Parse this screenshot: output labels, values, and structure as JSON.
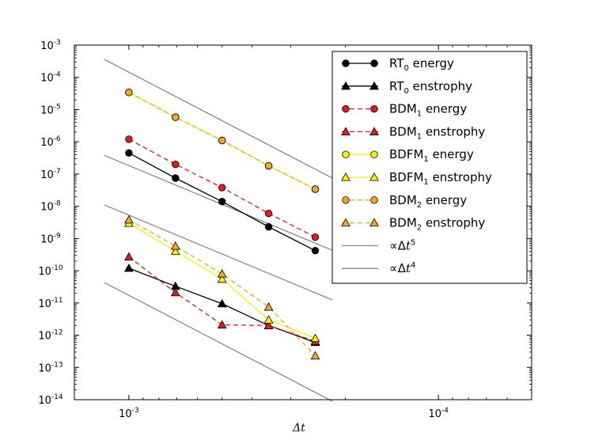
{
  "chart_data": {
    "type": "line",
    "title": "",
    "xlabel": "Δt",
    "ylabel": "",
    "x_scale": "log",
    "y_scale": "log",
    "x_reversed": true,
    "xlim": [
      0.0015,
      5e-05
    ],
    "ylim": [
      1e-14,
      0.001
    ],
    "x_ticks": [
      {
        "value": 0.001,
        "base": "10",
        "exp": "-3"
      },
      {
        "value": 0.0001,
        "base": "10",
        "exp": "-4"
      }
    ],
    "y_ticks": [
      {
        "value": 0.001,
        "base": "10",
        "exp": "-3"
      },
      {
        "value": 0.0001,
        "base": "10",
        "exp": "-4"
      },
      {
        "value": 1e-05,
        "base": "10",
        "exp": "-5"
      },
      {
        "value": 1e-06,
        "base": "10",
        "exp": "-6"
      },
      {
        "value": 1e-07,
        "base": "10",
        "exp": "-7"
      },
      {
        "value": 1e-08,
        "base": "10",
        "exp": "-8"
      },
      {
        "value": 1e-09,
        "base": "10",
        "exp": "-9"
      },
      {
        "value": 1e-10,
        "base": "10",
        "exp": "-10"
      },
      {
        "value": 1e-11,
        "base": "10",
        "exp": "-11"
      },
      {
        "value": 1e-12,
        "base": "10",
        "exp": "-12"
      },
      {
        "value": 1e-13,
        "base": "10",
        "exp": "-13"
      },
      {
        "value": 1e-14,
        "base": "10",
        "exp": "-14"
      }
    ],
    "x": [
      0.001,
      0.0007071,
      0.0005,
      0.0003536,
      0.00025
    ],
    "series": [
      {
        "name": "RT0 energy",
        "label_main": "RT",
        "label_sub": "0",
        "label_rest": " energy",
        "color": "#000000",
        "dash": "solid",
        "marker": "circle",
        "values": [
          4.5e-07,
          7.5e-08,
          1.4e-08,
          2.3e-09,
          4.2e-10
        ]
      },
      {
        "name": "RT0 enstrophy",
        "label_main": "RT",
        "label_sub": "0",
        "label_rest": " enstrophy",
        "color": "#000000",
        "dash": "solid",
        "marker": "triangle",
        "values": [
          1.2e-10,
          3.3e-11,
          9.5e-12,
          2e-12,
          6e-13
        ]
      },
      {
        "name": "BDM1 energy",
        "label_main": "BDM",
        "label_sub": "1",
        "label_rest": " energy",
        "color": "#e41a1c",
        "dash": "dashed",
        "marker": "circle",
        "values": [
          1.2e-06,
          2e-07,
          3.8e-08,
          6e-09,
          1.1e-09
        ]
      },
      {
        "name": "BDM1 enstrophy",
        "label_main": "BDM",
        "label_sub": "1",
        "label_rest": " enstrophy",
        "color": "#e41a1c",
        "dash": "dashed",
        "marker": "triangle",
        "values": [
          2.7e-10,
          2.1e-11,
          2.1e-12,
          2e-12,
          6.5e-13
        ]
      },
      {
        "name": "BDFM1 energy",
        "label_main": "BDFM",
        "label_sub": "1",
        "label_rest": " energy",
        "color": "#ffee00",
        "dash": "solid",
        "marker": "circle",
        "values": [
          3.4e-05,
          5.8e-06,
          1.1e-06,
          1.8e-07,
          3.4e-08
        ]
      },
      {
        "name": "BDFM1 enstrophy",
        "label_main": "BDFM",
        "label_sub": "1",
        "label_rest": " enstrophy",
        "color": "#ffee00",
        "dash": "solid",
        "marker": "triangle",
        "values": [
          3e-09,
          4e-10,
          5.5e-11,
          3e-12,
          8e-13
        ]
      },
      {
        "name": "BDM2 energy",
        "label_main": "BDM",
        "label_sub": "2",
        "label_rest": " energy",
        "color": "#f5a623",
        "dash": "dashed",
        "marker": "circle",
        "values": [
          3.4e-05,
          5.8e-06,
          1.1e-06,
          1.8e-07,
          3.4e-08
        ]
      },
      {
        "name": "BDM2 enstrophy",
        "label_main": "BDM",
        "label_sub": "2",
        "label_rest": " enstrophy",
        "color": "#f5a623",
        "dash": "dashed",
        "marker": "triangle",
        "values": [
          3.8e-09,
          5.8e-10,
          8e-11,
          7.5e-12,
          2.3e-13
        ]
      }
    ],
    "reference_lines": [
      {
        "name": "∝Δt5",
        "slope": 5,
        "color": "#888888",
        "x_range": [
          0.0012,
          0.00022
        ],
        "y_start": 0.00036,
        "legend": true
      },
      {
        "name": "∝Δt4",
        "slope": 4,
        "color": "#888888",
        "x_range": [
          0.0012,
          0.00022
        ],
        "y_start": 3.8e-07,
        "legend": true
      },
      {
        "name": "∝Δt4 (lower)",
        "slope": 4,
        "color": "#888888",
        "x_range": [
          0.0012,
          0.00022
        ],
        "y_start": 1.1e-08,
        "legend": false
      },
      {
        "name": "∝Δt5 (lower)",
        "slope": 5,
        "color": "#888888",
        "x_range": [
          0.0012,
          0.00022
        ],
        "y_start": 4.3e-11,
        "legend": false
      }
    ],
    "ref_legend": [
      {
        "prefix": "∝Δ",
        "var": "t",
        "exp": "5"
      },
      {
        "prefix": "∝Δ",
        "var": "t",
        "exp": "4"
      }
    ],
    "legend_position": "top-right",
    "grid": false
  }
}
